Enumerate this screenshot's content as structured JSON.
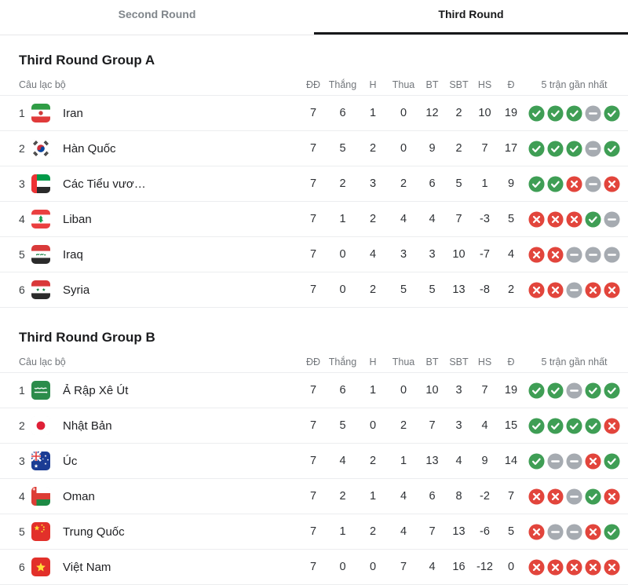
{
  "tabs": [
    {
      "label": "Second Round",
      "active": false
    },
    {
      "label": "Third Round",
      "active": true
    }
  ],
  "columns": {
    "club": "Câu lạc bộ",
    "played": "ĐĐ",
    "wins": "Thắng",
    "draws": "H",
    "losses": "Thua",
    "gf": "BT",
    "ga": "SBT",
    "gd": "HS",
    "points": "Đ",
    "form": "5 trận gần nhất"
  },
  "colors": {
    "win": "#3f9e55",
    "draw": "#a6abb1",
    "loss": "#e2453c",
    "active_tab_underline": "#17181a"
  },
  "groups": [
    {
      "title": "Third Round Group A",
      "rows": [
        {
          "pos": 1,
          "flag": "iran",
          "team": "Iran",
          "played": 7,
          "wins": 6,
          "draws": 1,
          "losses": 0,
          "gf": 12,
          "ga": 2,
          "gd": 10,
          "points": 19,
          "form": [
            "W",
            "W",
            "W",
            "D",
            "W"
          ]
        },
        {
          "pos": 2,
          "flag": "south-korea",
          "team": "Hàn Quốc",
          "played": 7,
          "wins": 5,
          "draws": 2,
          "losses": 0,
          "gf": 9,
          "ga": 2,
          "gd": 7,
          "points": 17,
          "form": [
            "W",
            "W",
            "W",
            "D",
            "W"
          ]
        },
        {
          "pos": 3,
          "flag": "uae",
          "team": "Các Tiểu vươ…",
          "played": 7,
          "wins": 2,
          "draws": 3,
          "losses": 2,
          "gf": 6,
          "ga": 5,
          "gd": 1,
          "points": 9,
          "form": [
            "W",
            "W",
            "L",
            "D",
            "L"
          ]
        },
        {
          "pos": 4,
          "flag": "lebanon",
          "team": "Liban",
          "played": 7,
          "wins": 1,
          "draws": 2,
          "losses": 4,
          "gf": 4,
          "ga": 7,
          "gd": -3,
          "points": 5,
          "form": [
            "L",
            "L",
            "L",
            "W",
            "D"
          ]
        },
        {
          "pos": 5,
          "flag": "iraq",
          "team": "Iraq",
          "played": 7,
          "wins": 0,
          "draws": 4,
          "losses": 3,
          "gf": 3,
          "ga": 10,
          "gd": -7,
          "points": 4,
          "form": [
            "L",
            "L",
            "D",
            "D",
            "D"
          ]
        },
        {
          "pos": 6,
          "flag": "syria",
          "team": "Syria",
          "played": 7,
          "wins": 0,
          "draws": 2,
          "losses": 5,
          "gf": 5,
          "ga": 13,
          "gd": -8,
          "points": 2,
          "form": [
            "L",
            "L",
            "D",
            "L",
            "L"
          ]
        }
      ]
    },
    {
      "title": "Third Round Group B",
      "rows": [
        {
          "pos": 1,
          "flag": "saudi-arabia",
          "team": "Ả Rập Xê Út",
          "played": 7,
          "wins": 6,
          "draws": 1,
          "losses": 0,
          "gf": 10,
          "ga": 3,
          "gd": 7,
          "points": 19,
          "form": [
            "W",
            "W",
            "D",
            "W",
            "W"
          ]
        },
        {
          "pos": 2,
          "flag": "japan",
          "team": "Nhật Bản",
          "played": 7,
          "wins": 5,
          "draws": 0,
          "losses": 2,
          "gf": 7,
          "ga": 3,
          "gd": 4,
          "points": 15,
          "form": [
            "W",
            "W",
            "W",
            "W",
            "L"
          ]
        },
        {
          "pos": 3,
          "flag": "australia",
          "team": "Úc",
          "played": 7,
          "wins": 4,
          "draws": 2,
          "losses": 1,
          "gf": 13,
          "ga": 4,
          "gd": 9,
          "points": 14,
          "form": [
            "W",
            "D",
            "D",
            "L",
            "W"
          ]
        },
        {
          "pos": 4,
          "flag": "oman",
          "team": "Oman",
          "played": 7,
          "wins": 2,
          "draws": 1,
          "losses": 4,
          "gf": 6,
          "ga": 8,
          "gd": -2,
          "points": 7,
          "form": [
            "L",
            "L",
            "D",
            "W",
            "L"
          ]
        },
        {
          "pos": 5,
          "flag": "china",
          "team": "Trung Quốc",
          "played": 7,
          "wins": 1,
          "draws": 2,
          "losses": 4,
          "gf": 7,
          "ga": 13,
          "gd": -6,
          "points": 5,
          "form": [
            "L",
            "D",
            "D",
            "L",
            "W"
          ]
        },
        {
          "pos": 6,
          "flag": "vietnam",
          "team": "Việt Nam",
          "played": 7,
          "wins": 0,
          "draws": 0,
          "losses": 7,
          "gf": 4,
          "ga": 16,
          "gd": -12,
          "points": 0,
          "form": [
            "L",
            "L",
            "L",
            "L",
            "L"
          ]
        }
      ]
    }
  ]
}
